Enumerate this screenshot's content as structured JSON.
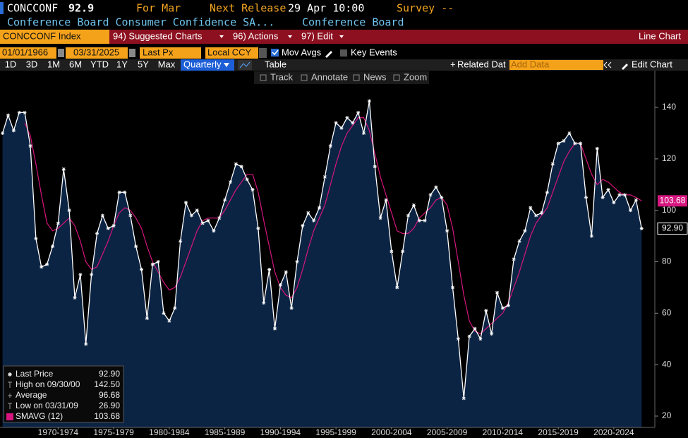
{
  "header": {
    "ticker": "CONCCONF",
    "value": "92.9",
    "for_label": "For Mar",
    "next_release_label": "Next Release",
    "next_release": "29 Apr 10:00",
    "survey": "Survey --",
    "description": "Conference Board Consumer Confidence SA...",
    "source": "Conference Board"
  },
  "menu": {
    "security": "CONCCONF Index",
    "items": [
      "94) Suggested Charts",
      "96) Actions",
      "97) Edit"
    ],
    "chart_type": "Line Chart"
  },
  "controls": {
    "start_date": "01/01/1966",
    "end_date": "03/31/2025",
    "field": "Last Px",
    "currency": "Local CCY",
    "mov_avgs": "Mov Avgs",
    "key_events": "Key Events"
  },
  "toolbar": {
    "periods": [
      "1D",
      "3D",
      "1M",
      "6M",
      "YTD",
      "1Y",
      "5Y",
      "Max"
    ],
    "frequency": "Quarterly",
    "table": "Table",
    "related": "Related Dat",
    "add_data": "Add Data",
    "edit_chart": "Edit Chart"
  },
  "tools": [
    "Track",
    "Annotate",
    "News",
    "Zoom"
  ],
  "chart_data": {
    "type": "line",
    "grid": false,
    "fill": "#0c2444",
    "x": [
      1967.5,
      1968,
      1968.5,
      1969,
      1969.5,
      1970,
      1970.5,
      1971,
      1971.5,
      1972,
      1972.5,
      1973,
      1973.5,
      1974,
      1974.5,
      1975,
      1975.5,
      1976,
      1976.5,
      1977,
      1977.5,
      1978,
      1978.5,
      1979,
      1979.5,
      1980,
      1980.5,
      1981,
      1981.5,
      1982,
      1982.5,
      1983,
      1983.5,
      1984,
      1984.5,
      1985,
      1985.5,
      1986,
      1986.5,
      1987,
      1987.5,
      1988,
      1988.5,
      1989,
      1989.5,
      1990,
      1990.5,
      1991,
      1991.5,
      1992,
      1992.5,
      1993,
      1993.5,
      1994,
      1994.5,
      1995,
      1995.5,
      1996,
      1996.5,
      1997,
      1997.5,
      1998,
      1998.5,
      1999,
      1999.5,
      2000,
      2000.5,
      2001,
      2001.5,
      2002,
      2002.5,
      2003,
      2003.5,
      2004,
      2004.5,
      2005,
      2005.5,
      2006,
      2006.5,
      2007,
      2007.5,
      2008,
      2008.5,
      2009,
      2009.5,
      2010,
      2010.5,
      2011,
      2011.5,
      2012,
      2012.5,
      2013,
      2013.5,
      2014,
      2014.5,
      2015,
      2015.5,
      2016,
      2016.5,
      2017,
      2017.5,
      2018,
      2018.5,
      2019,
      2019.5,
      2020,
      2020.5,
      2021,
      2021.5,
      2022,
      2022.5,
      2023,
      2023.5,
      2024,
      2024.5,
      2025
    ],
    "series": [
      {
        "name": "Last Price",
        "color": "#ffffff",
        "values": [
          130,
          137,
          131,
          138,
          138,
          125,
          89,
          78,
          79,
          86,
          95,
          116,
          100,
          66,
          75,
          48,
          75,
          91,
          98,
          93,
          94,
          107,
          107,
          98,
          86,
          77,
          58,
          79,
          80,
          60,
          57,
          62,
          88,
          103,
          98,
          100,
          95,
          96,
          92,
          97,
          104,
          111,
          118,
          117,
          112,
          108,
          93,
          64,
          77,
          54,
          71,
          76,
          62,
          80,
          94,
          99,
          96,
          101,
          113,
          125,
          134,
          132,
          136,
          134,
          138,
          130,
          142.5,
          117,
          97,
          104,
          84,
          70,
          84,
          98,
          102,
          96,
          96,
          106,
          109,
          105,
          92,
          70,
          50,
          26.9,
          51,
          54,
          50,
          61,
          52,
          68,
          62,
          63,
          81,
          88,
          92,
          101,
          98,
          99,
          107,
          118,
          126,
          127,
          130,
          126,
          126,
          105,
          90,
          124,
          105,
          108,
          103,
          106,
          106,
          100,
          104,
          92.9
        ]
      },
      {
        "name": "SMAVG (12)",
        "color": "#d6157f",
        "values": [
          null,
          null,
          null,
          null,
          134,
          129,
          118,
          106,
          95,
          92,
          93,
          95,
          97,
          94,
          88,
          80,
          77,
          78,
          83,
          88,
          94,
          99,
          101,
          100,
          97,
          93,
          86,
          80,
          76,
          72,
          69,
          70,
          74,
          80,
          86,
          92,
          96,
          97,
          97,
          97,
          100,
          104,
          108,
          111,
          114,
          114,
          107,
          96,
          86,
          76,
          70,
          67,
          66,
          70,
          77,
          85,
          92,
          97,
          102,
          110,
          118,
          125,
          130,
          133,
          136,
          136,
          131,
          122,
          113,
          106,
          99,
          92,
          91,
          91,
          93,
          97,
          99,
          101,
          104,
          105,
          102,
          93,
          80,
          67,
          57,
          53,
          52,
          54,
          56,
          58,
          60,
          64,
          70,
          76,
          83,
          90,
          95,
          98,
          101,
          107,
          113,
          119,
          123,
          126,
          126,
          120,
          114,
          110,
          112,
          111,
          109,
          107,
          106,
          106,
          105,
          103.68
        ]
      }
    ],
    "last_labels": [
      "92.90",
      "103.68"
    ],
    "stats": [
      {
        "label": "High on 09/30/00",
        "value": "142.50"
      },
      {
        "label": "Average",
        "value": "96.68"
      },
      {
        "label": "Low on 03/31/09",
        "value": "26.90"
      }
    ],
    "xlim": [
      1967.27,
      2026.19
    ],
    "ylim": [
      15.6,
      154.3
    ],
    "yticks": [
      20,
      40,
      60,
      80,
      100,
      120,
      140
    ],
    "xticks": [
      {
        "value": 1972.5,
        "label": "1970-1974"
      },
      {
        "value": 1977.5,
        "label": "1975-1979"
      },
      {
        "value": 1982.5,
        "label": "1980-1984"
      },
      {
        "value": 1987.5,
        "label": "1985-1989"
      },
      {
        "value": 1992.5,
        "label": "1990-1994"
      },
      {
        "value": 1997.5,
        "label": "1995-1999"
      },
      {
        "value": 2002.5,
        "label": "2000-2004"
      },
      {
        "value": 2007.5,
        "label": "2005-2009"
      },
      {
        "value": 2012.5,
        "label": "2010-2014"
      },
      {
        "value": 2017.5,
        "label": "2015-2019"
      },
      {
        "value": 2022.5,
        "label": "2020-2024"
      }
    ]
  }
}
